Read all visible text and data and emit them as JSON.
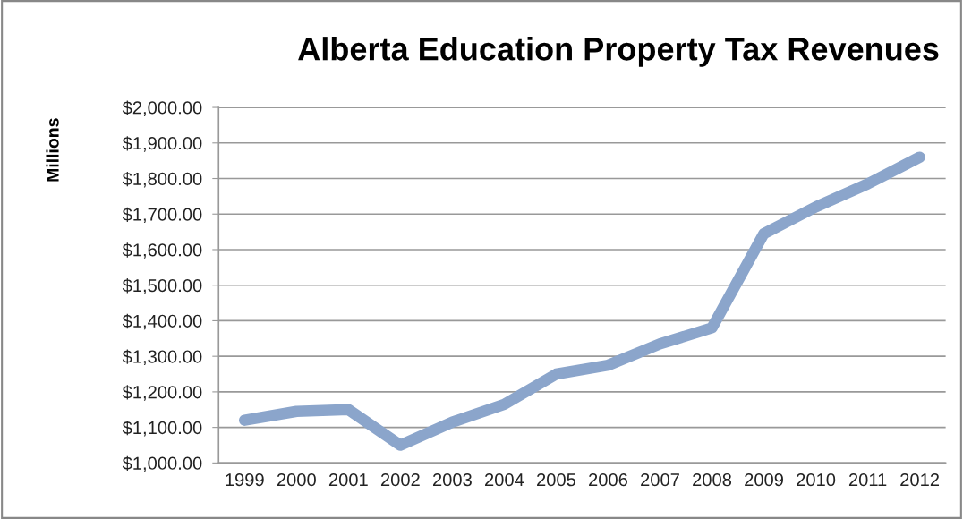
{
  "chart_data": {
    "type": "line",
    "title": "Alberta Education Property Tax Revenues",
    "ylabel": "Millions",
    "categories": [
      "1999",
      "2000",
      "2001",
      "2002",
      "2003",
      "2004",
      "2005",
      "2006",
      "2007",
      "2008",
      "2009",
      "2010",
      "2011",
      "2012"
    ],
    "series": [
      {
        "color": "#8ba5cb",
        "values": [
          1120,
          1145,
          1150,
          1050,
          1115,
          1165,
          1250,
          1275,
          1335,
          1380,
          1645,
          1720,
          1785,
          1860
        ]
      }
    ],
    "ylim": [
      1000,
      2000
    ],
    "yticks": [
      {
        "value": 1000,
        "label": "$1,000.00"
      },
      {
        "value": 1100,
        "label": "$1,100.00"
      },
      {
        "value": 1200,
        "label": "$1,200.00"
      },
      {
        "value": 1300,
        "label": "$1,300.00"
      },
      {
        "value": 1400,
        "label": "$1,400.00"
      },
      {
        "value": 1500,
        "label": "$1,500.00"
      },
      {
        "value": 1600,
        "label": "$1,600.00"
      },
      {
        "value": 1700,
        "label": "$1,700.00"
      },
      {
        "value": 1800,
        "label": "$1,800.00"
      },
      {
        "value": 1900,
        "label": "$1,900.00"
      },
      {
        "value": 2000,
        "label": "$2,000.00"
      }
    ],
    "grid": "y",
    "line_style": "solid"
  }
}
